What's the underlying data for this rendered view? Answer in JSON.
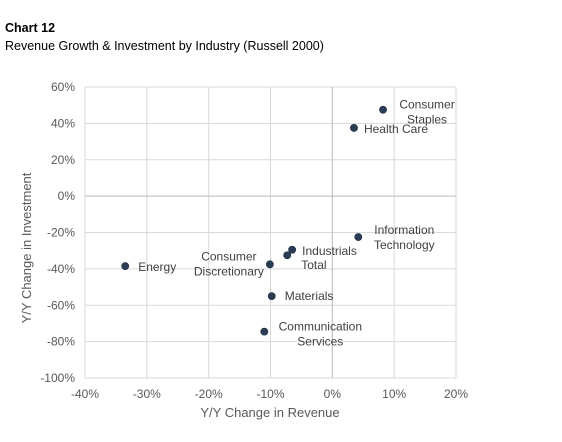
{
  "header": {
    "chart_number": "Chart 12",
    "title": "Revenue Growth & Investment by Industry (Russell 2000)"
  },
  "chart_data": {
    "type": "scatter",
    "title": "Revenue Growth & Investment by Industry (Russell 2000)",
    "xlabel": "Y/Y Change in Revenue",
    "ylabel": "Y/Y Change in Investment",
    "xlim": [
      -40,
      20
    ],
    "ylim": [
      -100,
      60
    ],
    "xticks": [
      -40,
      -30,
      -20,
      -10,
      0,
      10,
      20
    ],
    "yticks": [
      -100,
      -80,
      -60,
      -40,
      -20,
      0,
      20,
      40,
      60
    ],
    "xtick_labels": [
      "-40%",
      "-30%",
      "-20%",
      "-10%",
      "0%",
      "10%",
      "20%"
    ],
    "ytick_labels": [
      "-100%",
      "-80%",
      "-60%",
      "-40%",
      "-20%",
      "0%",
      "20%",
      "40%",
      "60%"
    ],
    "grid": true,
    "marker_color": "#2b3d55",
    "points": [
      {
        "label": "Consumer Staples",
        "x": 8.2,
        "y": 47.5
      },
      {
        "label": "Health Care",
        "x": 3.5,
        "y": 37.5
      },
      {
        "label": "Information Technology",
        "x": 4.2,
        "y": -22.5
      },
      {
        "label": "Industrials",
        "x": -6.5,
        "y": -29.5
      },
      {
        "label": "Total",
        "x": -7.3,
        "y": -32.5
      },
      {
        "label": "Consumer Discretionary",
        "x": -10.1,
        "y": -37.5
      },
      {
        "label": "Energy",
        "x": -33.5,
        "y": -38.5
      },
      {
        "label": "Materials",
        "x": -9.8,
        "y": -55
      },
      {
        "label": "Communication Services",
        "x": -11,
        "y": -74.5
      }
    ]
  }
}
